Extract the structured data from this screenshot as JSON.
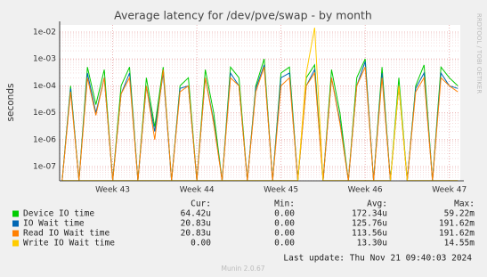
{
  "chart_data": {
    "type": "line",
    "title": "Average latency for /dev/pve/swap - by month",
    "y_label": "seconds",
    "side_label": "RRDTOOL / TOBI OETIKER",
    "log_y": true,
    "grid": true,
    "x": [
      42.4,
      42.5,
      42.6,
      42.7,
      42.8,
      42.9,
      43.0,
      43.1,
      43.2,
      43.3,
      43.4,
      43.5,
      43.6,
      43.7,
      43.8,
      43.9,
      44.0,
      44.1,
      44.2,
      44.3,
      44.4,
      44.5,
      44.6,
      44.7,
      44.8,
      44.9,
      45.0,
      45.1,
      45.2,
      45.3,
      45.4,
      45.5,
      45.6,
      45.7,
      45.8,
      45.9,
      46.0,
      46.1,
      46.2,
      46.3,
      46.4,
      46.5,
      46.6,
      46.7,
      46.8,
      46.9,
      47.0,
      47.1
    ],
    "xlim": [
      42.37,
      47.13
    ],
    "xticks": [
      {
        "value": 43,
        "label": "Week 43"
      },
      {
        "value": 44,
        "label": "Week 44"
      },
      {
        "value": 45,
        "label": "Week 45"
      },
      {
        "value": 46,
        "label": "Week 46"
      },
      {
        "value": 47,
        "label": "Week 47"
      }
    ],
    "ylim": [
      2.95e-08,
      0.0184
    ],
    "yticks": [
      {
        "value": 1e-07,
        "label": "1e-07"
      },
      {
        "value": 1e-06,
        "label": "1e-06"
      },
      {
        "value": 1e-05,
        "label": "1e-05"
      },
      {
        "value": 0.0001,
        "label": "1e-04"
      },
      {
        "value": 0.001,
        "label": "1e-03"
      },
      {
        "value": 0.01,
        "label": "1e-02"
      }
    ],
    "series": [
      {
        "name": "Device IO time",
        "color": "#00cc00",
        "values": [
          3e-08,
          0.0001,
          3e-08,
          0.0005,
          2e-05,
          0.0004,
          3e-08,
          0.0001,
          0.0005,
          3e-08,
          0.0002,
          3e-06,
          0.0005,
          3e-08,
          0.0001,
          0.0002,
          3e-08,
          0.0004,
          1e-05,
          3e-08,
          0.0005,
          0.0002,
          3e-08,
          0.0001,
          0.001,
          3e-08,
          0.0003,
          0.0005,
          3e-08,
          0.0002,
          0.0006,
          3e-08,
          0.0004,
          1e-05,
          3e-08,
          0.0002,
          0.001,
          3e-08,
          0.0005,
          3e-08,
          0.0002,
          3e-08,
          0.0001,
          0.0006,
          3e-08,
          0.0005,
          0.0002,
          0.0001
        ]
      },
      {
        "name": "IO Wait time",
        "color": "#0066b3",
        "values": [
          3e-08,
          8e-05,
          3e-08,
          0.0003,
          1e-05,
          0.0002,
          3e-08,
          5e-05,
          0.0003,
          3e-08,
          0.0001,
          2e-06,
          0.0003,
          3e-08,
          8e-05,
          0.0001,
          3e-08,
          0.0002,
          5e-06,
          3e-08,
          0.0003,
          0.0001,
          3e-08,
          8e-05,
          0.0006,
          3e-08,
          0.0002,
          0.0003,
          3e-08,
          0.0001,
          0.0004,
          3e-08,
          0.0002,
          5e-06,
          3e-08,
          0.0001,
          0.0008,
          3e-08,
          0.0003,
          3e-08,
          0.0001,
          3e-08,
          8e-05,
          0.0003,
          3e-08,
          0.0003,
          0.0001,
          8e-05
        ]
      },
      {
        "name": "Read IO Wait time",
        "color": "#ff8000",
        "values": [
          3e-08,
          6e-05,
          3e-08,
          0.0002,
          8e-06,
          0.0002,
          3e-08,
          5e-05,
          0.0002,
          3e-08,
          0.0001,
          1e-06,
          0.0004,
          3e-08,
          6e-05,
          0.0001,
          3e-08,
          0.0002,
          4e-06,
          3e-08,
          0.0002,
          0.0001,
          3e-08,
          6e-05,
          0.0005,
          3e-08,
          0.0001,
          0.0002,
          3e-08,
          0.0001,
          0.0003,
          3e-08,
          0.0002,
          4e-06,
          3e-08,
          0.0001,
          0.0005,
          3e-08,
          0.0002,
          3e-08,
          0.0001,
          3e-08,
          6e-05,
          0.0002,
          3e-08,
          0.0002,
          0.0001,
          6e-05
        ]
      },
      {
        "name": "Write IO Wait time",
        "color": "#ffcc00",
        "values": [
          3e-08,
          3e-08,
          3e-08,
          3e-08,
          3e-08,
          3e-08,
          3e-08,
          3e-08,
          3e-08,
          3e-08,
          3e-08,
          3e-08,
          3e-08,
          3e-08,
          3e-08,
          3e-08,
          3e-08,
          3e-08,
          3e-08,
          3e-08,
          3e-08,
          3e-08,
          3e-08,
          3e-08,
          3e-08,
          3e-08,
          3e-08,
          3e-08,
          3e-08,
          0.0003,
          0.01455,
          3e-08,
          3e-08,
          3e-08,
          3e-08,
          3e-08,
          3e-08,
          3e-08,
          3e-08,
          3e-08,
          0.0001,
          3e-08,
          3e-08,
          3e-08,
          3e-08,
          3e-08,
          3e-08,
          3e-08
        ]
      }
    ],
    "stats_headers": [
      "Cur:",
      "Min:",
      "Avg:",
      "Max:"
    ],
    "stats": [
      [
        "64.42u",
        "0.00",
        "172.34u",
        "59.22m"
      ],
      [
        "20.83u",
        "0.00",
        "125.76u",
        "191.62m"
      ],
      [
        "20.83u",
        "0.00",
        "113.56u",
        "191.62m"
      ],
      [
        "0.00",
        "0.00",
        "13.30u",
        "14.55m"
      ]
    ],
    "last_update": "Last update: Thu Nov 21 09:40:03 2024",
    "footer": "Munin 2.0.67"
  }
}
